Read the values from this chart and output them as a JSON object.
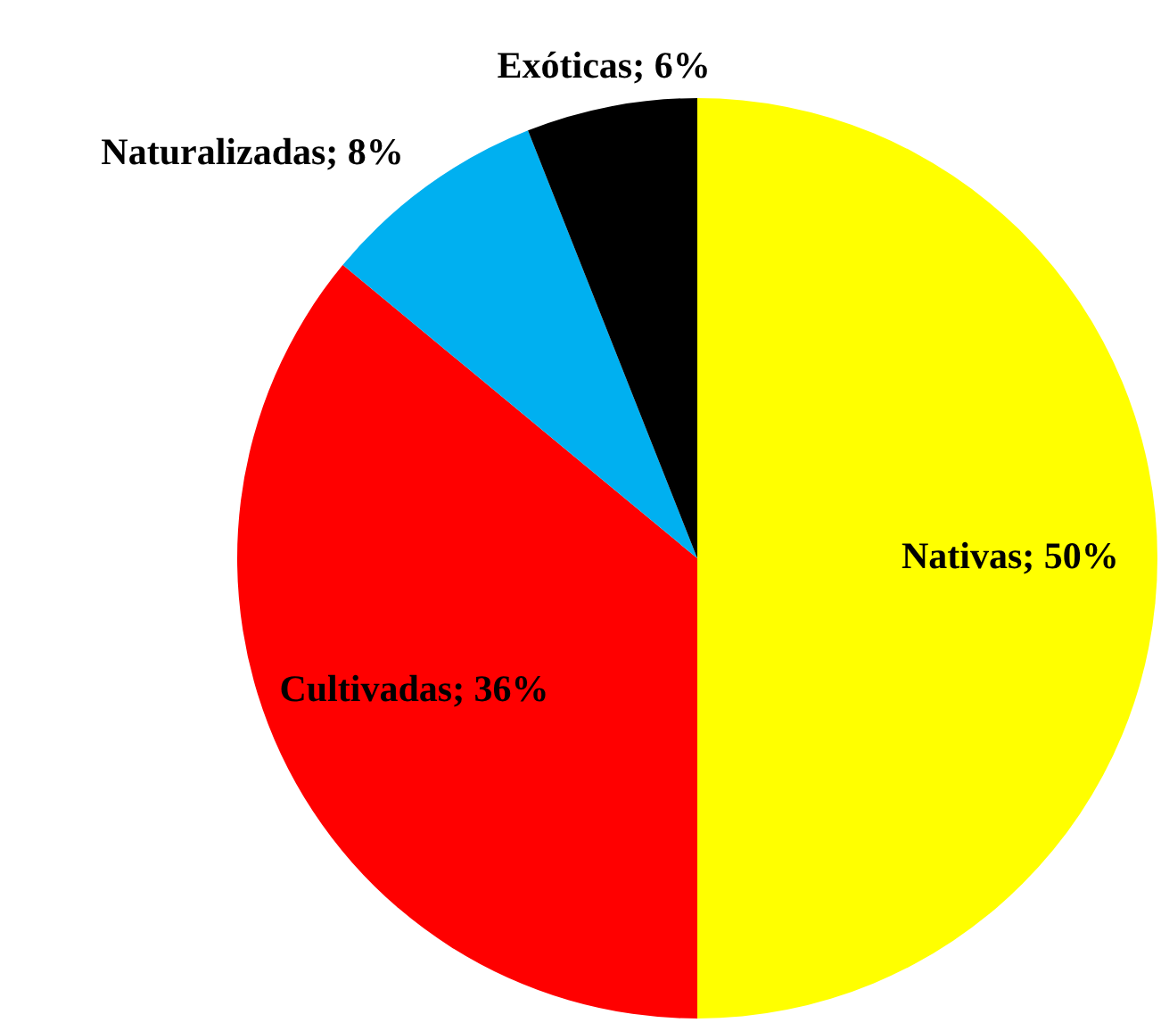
{
  "chart_data": {
    "type": "pie",
    "categories": [
      "Nativas",
      "Cultivadas",
      "Naturalizadas",
      "Exóticas"
    ],
    "values": [
      50,
      36,
      8,
      6
    ],
    "colors": [
      "#ffff00",
      "#ff0000",
      "#00b0f0",
      "#000000"
    ],
    "value_labels": [
      "50%",
      "36%",
      "8%",
      "6%"
    ],
    "legend": false
  }
}
